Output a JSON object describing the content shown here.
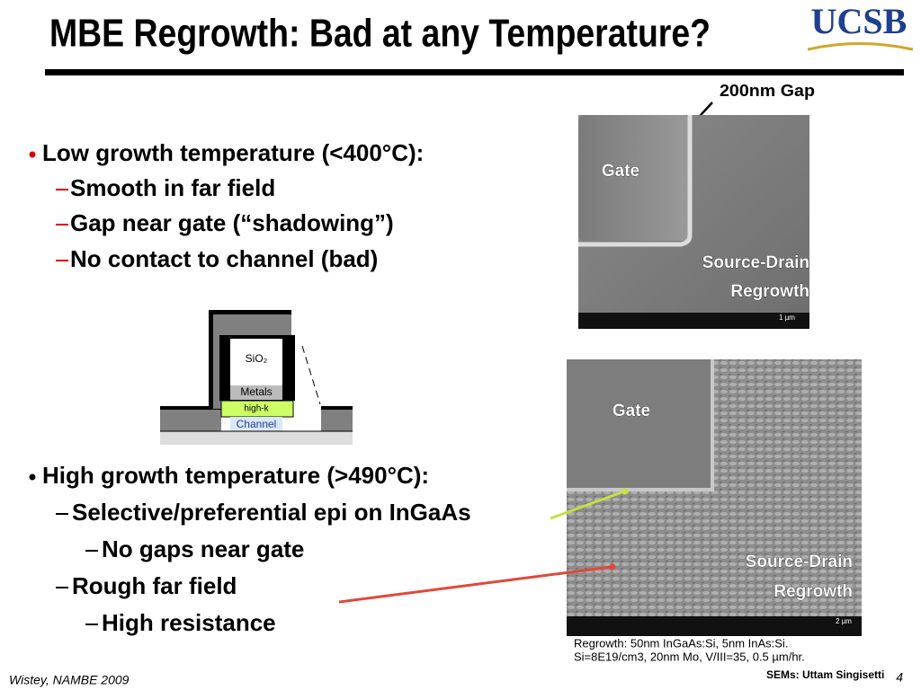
{
  "header": {
    "title": "MBE Regrowth: Bad at any Temperature?",
    "logo": "UCSB"
  },
  "annotation": "200nm Gap",
  "section_low": {
    "heading": "Low growth temperature (<400°C):",
    "items": [
      "Smooth in far field",
      "Gap near gate (“shadowing”)",
      "No contact to channel (bad)"
    ]
  },
  "diagram": {
    "oxide": "SiO₂",
    "metals": "Metals",
    "dielectric": "high-k",
    "channel": "Channel"
  },
  "sem_top": {
    "gate": "Gate",
    "region": [
      "Source-Drain",
      "Regrowth"
    ],
    "scale": "1 µm"
  },
  "section_high": {
    "heading": "High growth temperature (>490°C):",
    "items": [
      {
        "text": "Selective/preferential epi on InGaAs",
        "subitems": [
          "No gaps near gate"
        ]
      },
      {
        "text": "Rough far field",
        "subitems": [
          "High resistance"
        ]
      }
    ]
  },
  "sem_bottom": {
    "gate": "Gate",
    "region": [
      "Source-Drain",
      "Regrowth"
    ],
    "scale": "2 µm"
  },
  "caption": [
    "Regrowth: 50nm InGaAs:Si, 5nm InAs:Si.",
    "Si=8E19/cm3, 20nm Mo, V/III=35, 0.5 µm/hr."
  ],
  "footer": {
    "author": "Wistey, NAMBE 2009",
    "credit": "SEMs: Uttam Singisetti",
    "page": "4"
  }
}
